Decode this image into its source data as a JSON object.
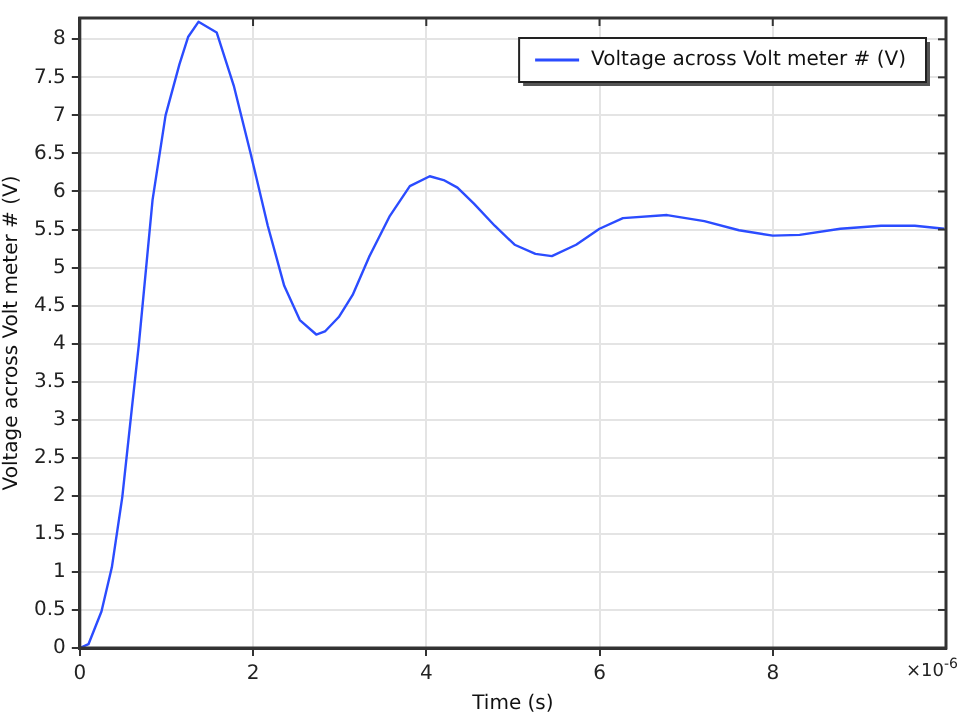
{
  "chart_data": {
    "type": "line",
    "xlabel": "Time (s)",
    "ylabel": "Voltage across Volt meter # (V)",
    "annotations": [
      "×10$^{-6}$"
    ],
    "xlim": [
      0,
      10
    ],
    "xticks": [
      0,
      2,
      4,
      6,
      8
    ],
    "ylim": [
      0,
      8.28
    ],
    "yticks": [
      0,
      0.5,
      1,
      1.5,
      2,
      2.5,
      3,
      3.5,
      4,
      4.5,
      5,
      5.5,
      6,
      6.5,
      7,
      7.5,
      8
    ],
    "grid": true,
    "legend": "top right",
    "marker": "none",
    "line_style": "solid",
    "series": [
      {
        "name": "Voltage across Volt meter # (V)",
        "color": "#2b4cff",
        "x": [
          0,
          0.1,
          0.25,
          0.37,
          0.49,
          0.6,
          0.68,
          0.84,
          0.99,
          1.15,
          1.25,
          1.37,
          1.58,
          1.78,
          1.97,
          2.17,
          2.36,
          2.54,
          2.73,
          2.83,
          2.99,
          3.15,
          3.34,
          3.58,
          3.81,
          4.04,
          4.2,
          4.36,
          4.55,
          4.79,
          5.02,
          5.26,
          5.45,
          5.73,
          6.0,
          6.27,
          6.78,
          7.21,
          7.61,
          8.0,
          8.31,
          8.78,
          9.25,
          9.64,
          9.98
        ],
        "values": [
          0,
          0.05,
          0.48,
          1.06,
          1.98,
          3.14,
          3.97,
          5.89,
          7.0,
          7.67,
          8.03,
          8.23,
          8.09,
          7.38,
          6.51,
          5.55,
          4.76,
          4.31,
          4.12,
          4.16,
          4.35,
          4.64,
          5.14,
          5.68,
          6.07,
          6.2,
          6.15,
          6.05,
          5.84,
          5.55,
          5.3,
          5.18,
          5.15,
          5.3,
          5.51,
          5.65,
          5.69,
          5.61,
          5.49,
          5.42,
          5.43,
          5.51,
          5.55,
          5.55,
          5.51
        ]
      }
    ]
  }
}
